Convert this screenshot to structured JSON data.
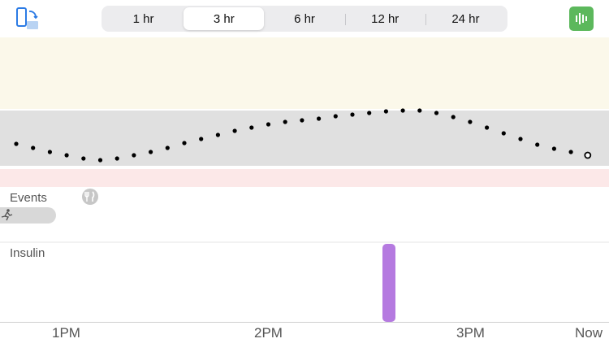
{
  "toolbar": {
    "rotate_icon": "rotate-device-icon",
    "time_ranges": [
      "1 hr",
      "3 hr",
      "6 hr",
      "12 hr",
      "24 hr"
    ],
    "selected_range": "3 hr",
    "bars_icon": "bar-chart-icon",
    "accent_color": "#5cb85c"
  },
  "glucose": {
    "colors": {
      "high_band": "#fbf8ea",
      "target_band": "#e0e0e0",
      "low_band": "#fce8e8"
    },
    "reading_count": 35,
    "latest_marker": "hollow-circle"
  },
  "events": {
    "label": "Events",
    "meal_icon": "fork-knife-icon",
    "activity_icon": "running-figure-icon"
  },
  "insulin": {
    "label": "Insulin",
    "bar_color": "#b57ae0"
  },
  "time_axis": {
    "ticks": [
      "1PM",
      "2PM",
      "3PM",
      "Now"
    ]
  }
}
